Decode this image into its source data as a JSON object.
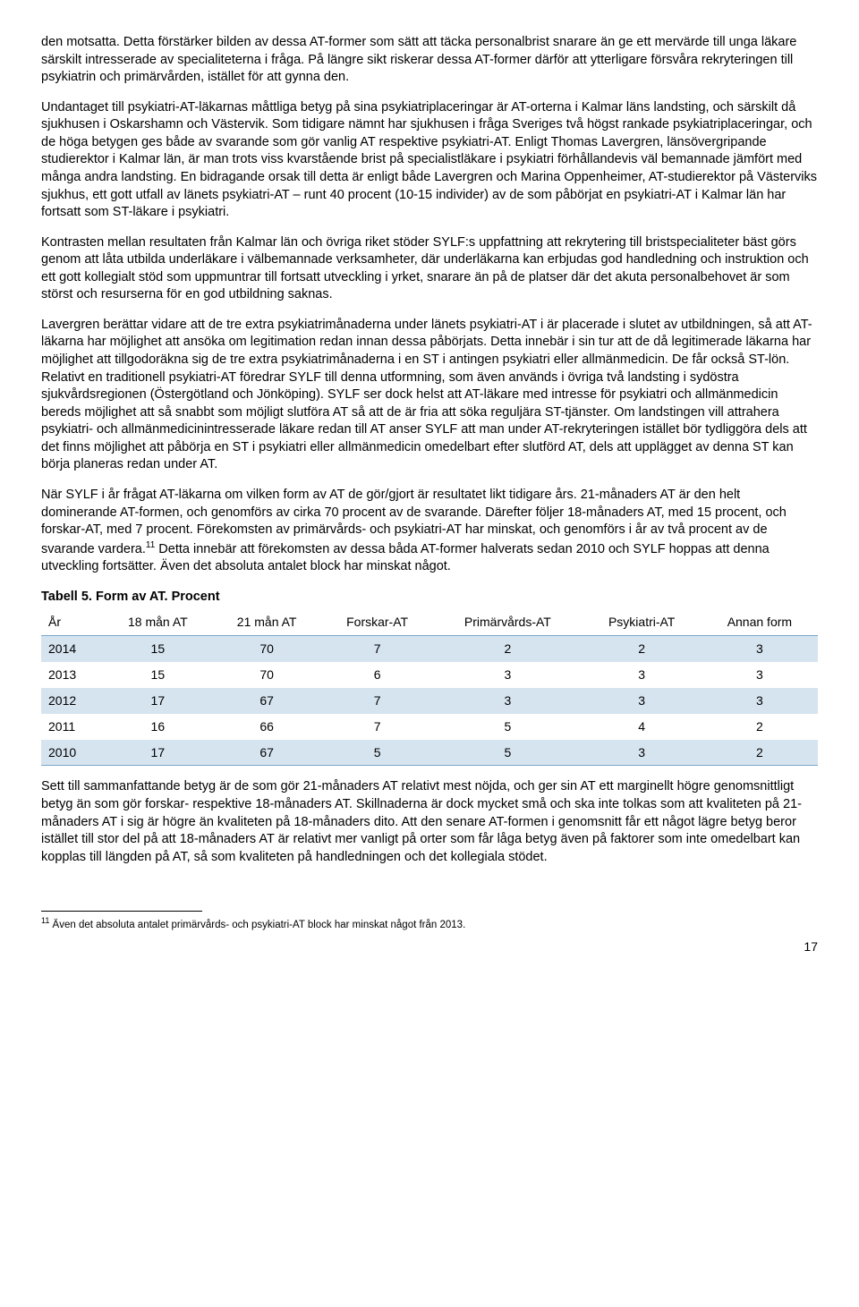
{
  "paragraphs": {
    "p1": "den motsatta. Detta förstärker bilden av dessa AT-former som sätt att täcka personalbrist snarare än ge ett mervärde till unga läkare särskilt intresserade av specialiteterna i fråga. På längre sikt riskerar dessa AT-former därför att ytterligare försvåra rekryteringen till psykiatrin och primärvården, istället för att gynna den.",
    "p2": "Undantaget till psykiatri-AT-läkarnas måttliga betyg på sina psykiatriplaceringar är AT-orterna i Kalmar läns landsting, och särskilt då sjukhusen i Oskarshamn och Västervik. Som tidigare nämnt har sjukhusen i fråga Sveriges två högst rankade psykiatriplaceringar, och de höga betygen ges både av svarande som gör vanlig AT respektive psykiatri-AT. Enligt Thomas Lavergren, länsövergripande studierektor i Kalmar län, är man trots viss kvarstående brist på specialistläkare i psykiatri förhållandevis väl bemannade jämfört med många andra landsting. En bidragande orsak till detta är enligt både Lavergren och Marina Oppenheimer, AT-studierektor på Västerviks sjukhus, ett gott utfall av länets psykiatri-AT – runt 40 procent (10-15 individer) av de som påbörjat en psykiatri-AT i Kalmar län har fortsatt som ST-läkare i psykiatri.",
    "p3": "Kontrasten mellan resultaten från Kalmar län och övriga riket stöder SYLF:s uppfattning att rekrytering till bristspecialiteter bäst görs genom att låta utbilda underläkare i välbemannade verksamheter, där underläkarna kan erbjudas god handledning och instruktion och ett gott kollegialt stöd som uppmuntrar till fortsatt utveckling i yrket, snarare än på de platser där det akuta personalbehovet är som störst och resurserna för en god utbildning saknas.",
    "p4": "Lavergren berättar vidare att de tre extra psykiatrimånaderna under länets psykiatri-AT i är placerade i slutet av utbildningen, så att AT-läkarna har möjlighet att ansöka om legitimation redan innan dessa påbörjats. Detta innebär i sin tur att de då legitimerade läkarna har möjlighet att tillgodoräkna sig de tre extra psykiatrimånaderna i en ST i antingen psykiatri eller allmänmedicin. De får också ST-lön. Relativt en traditionell psykiatri-AT föredrar SYLF till denna utformning, som även används i övriga två landsting i sydöstra sjukvårdsregionen (Östergötland och Jönköping). SYLF ser dock helst att AT-läkare med intresse för psykiatri och allmänmedicin bereds möjlighet att så snabbt som möjligt slutföra AT så att de är fria att söka reguljära ST-tjänster. Om landstingen vill attrahera psykiatri- och allmänmedicinintresserade läkare redan till AT anser SYLF att man under AT-rekryteringen istället bör tydliggöra dels att det finns möjlighet att påbörja en ST i psykiatri eller allmänmedicin omedelbart efter slutförd AT, dels att upplägget av denna ST kan börja planeras redan under AT.",
    "p5a": "När SYLF i år frågat AT-läkarna om vilken form av AT de gör/gjort är resultatet likt tidigare års. 21-månaders AT är den helt dominerande AT-formen, och genomförs av cirka 70 procent av de svarande. Därefter följer 18-månaders AT, med 15 procent, och forskar-AT, med 7 procent. Förekomsten av primärvårds- och psykiatri-AT har minskat, och genomförs i år av två procent av de svarande vardera.",
    "p5b": " Detta innebär att förekomsten av dessa båda AT-former halverats sedan 2010 och SYLF hoppas att denna utveckling fortsätter. Även det absoluta antalet block har minskat något.",
    "p6": "Sett till sammanfattande betyg är de som gör 21-månaders AT relativt mest nöjda, och ger sin AT ett marginellt högre genomsnittligt betyg än som gör forskar- respektive 18-månaders AT. Skillnaderna är dock mycket små och ska inte tolkas som att kvaliteten på 21-månaders AT i sig är högre än kvaliteten på 18-månaders dito. Att den senare AT-formen i genomsnitt får ett något lägre betyg beror istället till stor del på att 18-månaders AT är relativt mer vanligt på orter som får låga betyg även på faktorer som inte omedelbart kan kopplas till längden på AT, så som kvaliteten på handledningen och det kollegiala stödet."
  },
  "table": {
    "title": "Tabell 5. Form av AT. Procent",
    "columns": [
      "År",
      "18 mån AT",
      "21 mån AT",
      "Forskar-AT",
      "Primärvårds-AT",
      "Psykiatri-AT",
      "Annan form"
    ],
    "rows": [
      [
        "2014",
        "15",
        "70",
        "7",
        "2",
        "2",
        "3"
      ],
      [
        "2013",
        "15",
        "70",
        "6",
        "3",
        "3",
        "3"
      ],
      [
        "2012",
        "17",
        "67",
        "7",
        "3",
        "3",
        "3"
      ],
      [
        "2011",
        "16",
        "66",
        "7",
        "5",
        "4",
        "2"
      ],
      [
        "2010",
        "17",
        "67",
        "5",
        "5",
        "3",
        "2"
      ]
    ],
    "odd_row_bg": "#d6e4f0",
    "border_color": "#7ba7c9"
  },
  "footnote": {
    "ref": "11",
    "text": " Även det absoluta antalet primärvårds- och psykiatri-AT block har minskat något från 2013."
  },
  "page_number": "17"
}
